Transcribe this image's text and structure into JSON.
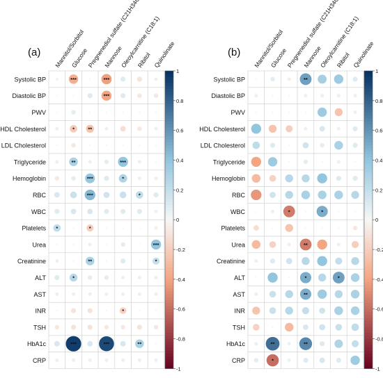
{
  "rows": [
    "Systolic BP",
    "Diastolic BP",
    "PWV",
    "HDL Cholesterol",
    "LDL Cholesterol",
    "Triglyceride",
    "Hemoglobin",
    "RBC",
    "WBC",
    "Platelets",
    "Urea",
    "Creatinine",
    "ALT",
    "AST",
    "INR",
    "TSH",
    "HbA1c",
    "CRP"
  ],
  "columns": [
    "Mannitol/Sorbitol",
    "Glucose",
    "Pregnenediol sulfate (C21H34O5S)",
    "Mannose",
    "Oleoylcarnitine (C18:1)",
    "Ribitol",
    "Quinolinate"
  ],
  "colorbar": {
    "ticks": [
      "1",
      "0.8",
      "0.6",
      "0.4",
      "0.2",
      "0",
      "-0.2",
      "-0.4",
      "-0.6",
      "-0.8",
      "-1"
    ],
    "min": -1,
    "max": 1,
    "colors": {
      "pos": "#053061",
      "mid": "#f7f7f7",
      "neg": "#67001f"
    }
  },
  "chart_data": [
    {
      "type": "heatmap",
      "panel_label": "(a)",
      "values": [
        [
          -0.03,
          -0.35,
          0.0,
          -0.42,
          0.1,
          -0.1,
          -0.05
        ],
        [
          0.0,
          0.0,
          0.1,
          -0.4,
          0.1,
          -0.08,
          -0.08
        ],
        [
          0.0,
          0.08,
          0.0,
          0.0,
          0.0,
          0.0,
          0.0
        ],
        [
          0.05,
          -0.22,
          -0.25,
          -0.05,
          -0.12,
          -0.08,
          -0.05
        ],
        [
          0.0,
          -0.08,
          0.0,
          0.0,
          0.0,
          0.0,
          0.0
        ],
        [
          0.05,
          0.3,
          0.05,
          0.08,
          0.4,
          0.05,
          0.0
        ],
        [
          -0.08,
          0.08,
          0.38,
          0.1,
          0.28,
          -0.05,
          -0.05
        ],
        [
          0.12,
          0.18,
          0.45,
          0.15,
          0.18,
          0.22,
          0.1
        ],
        [
          0.1,
          0.12,
          0.12,
          0.1,
          0.1,
          0.1,
          0.05
        ],
        [
          0.22,
          0.0,
          -0.2,
          0.0,
          0.0,
          0.0,
          -0.05
        ],
        [
          0.0,
          0.0,
          0.05,
          0.0,
          0.08,
          0.0,
          0.4
        ],
        [
          0.05,
          0.0,
          0.3,
          0.0,
          0.1,
          0.0,
          0.2
        ],
        [
          0.1,
          0.25,
          0.08,
          0.08,
          0.05,
          0.05,
          0.05
        ],
        [
          0.05,
          0.05,
          0.05,
          0.05,
          0.05,
          0.05,
          0.05
        ],
        [
          0.0,
          -0.1,
          -0.1,
          0.0,
          -0.18,
          0.0,
          0.0
        ],
        [
          -0.08,
          -0.1,
          -0.1,
          -0.08,
          -0.08,
          -0.1,
          -0.08
        ],
        [
          0.12,
          0.95,
          0.12,
          0.9,
          0.12,
          0.3,
          0.0
        ],
        [
          0.05,
          0.05,
          0.05,
          0.05,
          0.05,
          0.05,
          0.05
        ]
      ],
      "stars": [
        [
          "",
          "***",
          "",
          "***",
          "",
          "",
          ""
        ],
        [
          "",
          "",
          "",
          "***",
          "",
          "",
          ""
        ],
        [
          "",
          "",
          "",
          "",
          "",
          "",
          ""
        ],
        [
          "",
          "*",
          "**",
          "",
          "",
          "",
          ""
        ],
        [
          "",
          "",
          "",
          "",
          "",
          "",
          ""
        ],
        [
          "",
          "**",
          "",
          "",
          "***",
          "",
          ""
        ],
        [
          "",
          "",
          "***",
          "",
          "*",
          "",
          ""
        ],
        [
          "",
          "",
          "***",
          "",
          "",
          "*",
          ""
        ],
        [
          "",
          "",
          "",
          "",
          "",
          "",
          ""
        ],
        [
          "*",
          "",
          "*",
          "",
          "",
          "",
          ""
        ],
        [
          "",
          "",
          "",
          "",
          "",
          "",
          "***"
        ],
        [
          "",
          "",
          "**",
          "",
          "",
          "",
          "*"
        ],
        [
          "",
          "*",
          "",
          "",
          "",
          "",
          ""
        ],
        [
          "",
          "",
          "",
          "",
          "",
          "",
          ""
        ],
        [
          "",
          "",
          "",
          "",
          "*",
          "",
          ""
        ],
        [
          "",
          "",
          "",
          "",
          "",
          "",
          ""
        ],
        [
          "",
          "***",
          "",
          "***",
          "",
          "**",
          ""
        ],
        [
          "",
          "",
          "",
          "",
          "",
          "",
          ""
        ]
      ]
    },
    {
      "type": "heatmap",
      "panel_label": "(b)",
      "values": [
        [
          0.0,
          0.08,
          -0.05,
          0.55,
          0.32,
          0.35,
          0.1
        ],
        [
          -0.05,
          0.0,
          0.0,
          0.05,
          0.05,
          0.05,
          0.05
        ],
        [
          0.0,
          0.0,
          0.0,
          0.0,
          0.35,
          -0.25,
          0.05
        ],
        [
          0.4,
          -0.25,
          -0.2,
          0.05,
          0.12,
          0.05,
          0.1
        ],
        [
          0.22,
          0.1,
          0.0,
          0.15,
          0.08,
          0.3,
          0.1
        ],
        [
          -0.4,
          0.35,
          0.0,
          0.08,
          0.0,
          0.05,
          0.0
        ],
        [
          -0.3,
          -0.18,
          0.25,
          0.25,
          0.4,
          0.1,
          0.1
        ],
        [
          -0.45,
          0.15,
          0.25,
          0.3,
          0.3,
          0.3,
          0.25
        ],
        [
          0.0,
          0.05,
          -0.55,
          0.0,
          0.5,
          0.0,
          0.0
        ],
        [
          -0.12,
          0.0,
          -0.25,
          0.0,
          0.0,
          0.0,
          -0.08
        ],
        [
          -0.3,
          -0.18,
          -0.05,
          -0.55,
          -0.4,
          -0.05,
          -0.2
        ],
        [
          0.05,
          0.1,
          0.15,
          0.25,
          0.4,
          0.2,
          0.25
        ],
        [
          0.0,
          0.4,
          0.0,
          0.5,
          0.25,
          0.55,
          0.3
        ],
        [
          0.05,
          0.18,
          0.25,
          0.5,
          0.35,
          0.25,
          0.3
        ],
        [
          -0.25,
          0.18,
          0.25,
          0.2,
          0.15,
          0.3,
          0.3
        ],
        [
          -0.18,
          0.0,
          -0.3,
          0.12,
          0.15,
          0.18,
          0.22
        ],
        [
          0.05,
          0.75,
          0.05,
          0.65,
          0.1,
          0.28,
          0.2
        ],
        [
          0.08,
          -0.6,
          0.05,
          0.1,
          0.12,
          0.1,
          0.35
        ]
      ],
      "stars": [
        [
          "",
          "",
          "",
          "**",
          "",
          "",
          ""
        ],
        [
          "",
          "",
          "",
          "",
          "",
          "",
          ""
        ],
        [
          "",
          "",
          "",
          "",
          "",
          "",
          ""
        ],
        [
          "",
          "",
          "",
          "",
          "",
          "",
          ""
        ],
        [
          "",
          "",
          "",
          "",
          "",
          "",
          ""
        ],
        [
          "",
          "",
          "",
          "",
          "",
          "",
          ""
        ],
        [
          "",
          "",
          "",
          "",
          "",
          "",
          ""
        ],
        [
          "",
          "",
          "",
          "",
          "",
          "",
          ""
        ],
        [
          "",
          "",
          "*",
          "",
          "*",
          "",
          ""
        ],
        [
          "",
          "",
          "",
          "",
          "",
          "",
          ""
        ],
        [
          "",
          "",
          "",
          "**",
          "",
          "",
          ""
        ],
        [
          "",
          "",
          "",
          "",
          "",
          "",
          ""
        ],
        [
          "",
          "",
          "",
          "*",
          "",
          "*",
          ""
        ],
        [
          "",
          "",
          "",
          "**",
          "",
          "",
          ""
        ],
        [
          "",
          "",
          "",
          "",
          "",
          "",
          ""
        ],
        [
          "",
          "",
          "",
          "",
          "",
          "",
          ""
        ],
        [
          "",
          "**",
          "",
          "**",
          "",
          "",
          ""
        ],
        [
          "",
          "*",
          "",
          "",
          "",
          "",
          ""
        ]
      ]
    }
  ]
}
